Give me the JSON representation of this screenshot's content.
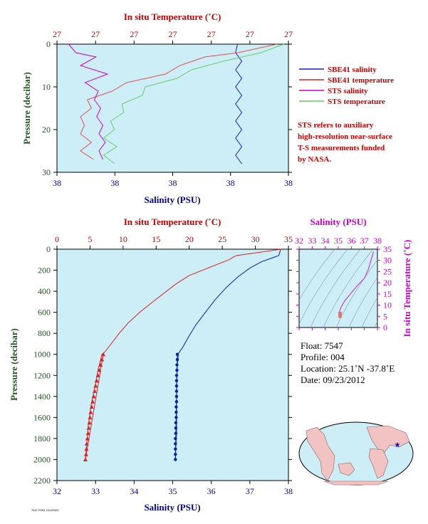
{
  "chart_data": [
    {
      "type": "line",
      "panel": "top",
      "title_top_axis": "In situ Temperature (˚C)",
      "top_ticks": [
        "27",
        "27",
        "27",
        "27",
        "27",
        "27",
        "27"
      ],
      "xlabel": "Salinity (PSU)",
      "bottom_ticks": [
        "38",
        "38",
        "38",
        "38",
        "38"
      ],
      "ylabel": "Pressure (decibar)",
      "ylim": [
        0,
        30
      ],
      "y_ticks": [
        "0",
        "10",
        "20",
        "30"
      ],
      "series": [
        {
          "name": "SBE41 salinity",
          "color": "#1a1acc",
          "points": [
            [
              0.78,
              0
            ],
            [
              0.79,
              2
            ],
            [
              0.78,
              4
            ],
            [
              0.79,
              6
            ],
            [
              0.78,
              8
            ],
            [
              0.79,
              10
            ],
            [
              0.78,
              12
            ],
            [
              0.79,
              14
            ],
            [
              0.78,
              16
            ],
            [
              0.79,
              18
            ],
            [
              0.78,
              20
            ],
            [
              0.79,
              22
            ],
            [
              0.78,
              24
            ],
            [
              0.79,
              26
            ],
            [
              0.78,
              28
            ]
          ]
        },
        {
          "name": "SBE41 temperature",
          "color": "#e65050",
          "points": [
            [
              0.95,
              0
            ],
            [
              0.8,
              2
            ],
            [
              0.62,
              3
            ],
            [
              0.55,
              5
            ],
            [
              0.45,
              7
            ],
            [
              0.32,
              9
            ],
            [
              0.22,
              11
            ],
            [
              0.15,
              13
            ],
            [
              0.13,
              15
            ],
            [
              0.12,
              17
            ],
            [
              0.1,
              19
            ],
            [
              0.12,
              21
            ],
            [
              0.13,
              23
            ],
            [
              0.12,
              25
            ],
            [
              0.14,
              27
            ]
          ]
        },
        {
          "name": "STS salinity",
          "color": "#cc00cc",
          "points": [
            [
              0.05,
              0
            ],
            [
              0.1,
              2
            ],
            [
              0.15,
              3
            ],
            [
              0.12,
              5
            ],
            [
              0.2,
              7
            ],
            [
              0.14,
              9
            ],
            [
              0.16,
              11
            ],
            [
              0.18,
              13
            ],
            [
              0.17,
              15
            ],
            [
              0.19,
              17
            ],
            [
              0.18,
              19
            ],
            [
              0.2,
              21
            ],
            [
              0.19,
              23
            ],
            [
              0.2,
              25
            ],
            [
              0.18,
              27
            ]
          ]
        },
        {
          "name": "STS temperature",
          "color": "#66cc66",
          "points": [
            [
              0.98,
              0
            ],
            [
              0.9,
              2
            ],
            [
              0.7,
              4
            ],
            [
              0.6,
              6
            ],
            [
              0.5,
              8
            ],
            [
              0.4,
              10
            ],
            [
              0.35,
              12
            ],
            [
              0.3,
              14
            ],
            [
              0.27,
              16
            ],
            [
              0.25,
              18
            ],
            [
              0.23,
              20
            ],
            [
              0.22,
              22
            ],
            [
              0.24,
              24
            ],
            [
              0.22,
              26
            ],
            [
              0.23,
              28
            ]
          ]
        }
      ],
      "note": "STS refers to auxiliary high-resolution near-surface T-S measurements funded by NASA."
    },
    {
      "type": "line",
      "panel": "main",
      "title_top_axis": "In situ Temperature (˚C)",
      "top_ticks": [
        "0",
        "5",
        "10",
        "15",
        "20",
        "25",
        "30",
        "35"
      ],
      "xlim_top": [
        0,
        35
      ],
      "xlabel": "Salinity (PSU)",
      "bottom_ticks": [
        "32",
        "33",
        "34",
        "35",
        "36",
        "37",
        "38"
      ],
      "xlim": [
        32,
        38
      ],
      "ylabel": "Pressure (decibar)",
      "ylim": [
        0,
        2200
      ],
      "y_ticks": [
        "0",
        "200",
        "400",
        "600",
        "800",
        "1000",
        "1200",
        "1400",
        "1600",
        "1800",
        "2000",
        "2200"
      ],
      "series": [
        {
          "name": "salinity",
          "color": "#0022aa",
          "x": [
            37.8,
            37.75,
            37.3,
            37.0,
            36.7,
            36.4,
            36.1,
            35.85,
            35.6,
            35.4,
            35.25,
            35.15,
            35.12,
            35.1,
            35.1,
            35.1,
            35.1,
            35.08,
            35.07
          ],
          "y": [
            0,
            60,
            120,
            180,
            260,
            360,
            480,
            600,
            720,
            840,
            940,
            990,
            1100,
            1300,
            1450,
            1600,
            1750,
            1900,
            2000
          ]
        },
        {
          "name": "temperature",
          "color": "#dd2222",
          "x": [
            33.9,
            27.2,
            26.8,
            26.0,
            20.0,
            18.0,
            14.5,
            12.5,
            10.8,
            9.4,
            8.2,
            7.2,
            6.8,
            6.2,
            5.6,
            5.1,
            4.7,
            4.5,
            4.3
          ],
          "y": [
            0,
            60,
            70,
            100,
            250,
            330,
            500,
            600,
            700,
            800,
            900,
            980,
            1000,
            1150,
            1350,
            1500,
            1700,
            1850,
            2000
          ]
        }
      ],
      "markers": {
        "salinity": {
          "x": [
            35.12,
            35.12,
            35.11,
            35.11,
            35.1,
            35.1,
            35.1,
            35.1,
            35.1,
            35.1,
            35.09,
            35.09,
            35.09,
            35.08,
            35.08,
            35.08,
            35.07,
            35.07,
            35.07,
            35.07,
            35.07
          ],
          "y": [
            1000,
            1050,
            1100,
            1150,
            1200,
            1250,
            1300,
            1350,
            1400,
            1450,
            1500,
            1550,
            1600,
            1650,
            1700,
            1750,
            1800,
            1850,
            1900,
            1950,
            2000
          ]
        },
        "temperature": {
          "x": [
            7.0,
            6.8,
            6.6,
            6.4,
            6.2,
            6.0,
            5.85,
            5.7,
            5.55,
            5.4,
            5.25,
            5.1,
            5.0,
            4.9,
            4.8,
            4.7,
            4.6,
            4.5,
            4.45,
            4.4,
            4.3
          ],
          "y": [
            1000,
            1050,
            1100,
            1150,
            1200,
            1250,
            1300,
            1350,
            1400,
            1450,
            1500,
            1550,
            1600,
            1650,
            1700,
            1750,
            1800,
            1850,
            1900,
            1950,
            2000
          ]
        }
      }
    },
    {
      "type": "line",
      "panel": "ts-diagram",
      "title_top_axis": "Salinity (PSU)",
      "top_ticks": [
        "32",
        "33",
        "34",
        "35",
        "36",
        "37",
        "38"
      ],
      "xlim": [
        32,
        38
      ],
      "ylabel": "In situ Temperature (˚C)",
      "y_ticks": [
        "0",
        "5",
        "10",
        "15",
        "20",
        "25",
        "30",
        "35"
      ],
      "ylim": [
        0,
        35
      ],
      "series": [
        {
          "name": "T-S",
          "color": "#cc22cc",
          "x": [
            35.07,
            35.1,
            35.2,
            35.5,
            36.0,
            36.5,
            37.0,
            37.3,
            37.7
          ],
          "y": [
            4.3,
            7.0,
            9.0,
            12.0,
            15.5,
            19.0,
            22.0,
            26.0,
            33.9
          ]
        }
      ]
    }
  ],
  "legend": [
    {
      "label": "SBE41 salinity",
      "color": "#1a1acc"
    },
    {
      "label": "SBE41 temperature",
      "color": "#dd2222"
    },
    {
      "label": "STS salinity",
      "color": "#cc00cc"
    },
    {
      "label": "STS temperature",
      "color": "#66cc66"
    }
  ],
  "note_lines": [
    "STS refers to auxiliary",
    "high-resolution near-surface",
    "T-S measurements funded",
    "by NASA."
  ],
  "info": {
    "float": "Float:  7547",
    "profile": "Profile:  004",
    "location": "Location:  25.1˚N  -37.8˚E",
    "date": "Date:  09/23/2012"
  },
  "footer_tag": "7547 P004 20120923",
  "colors": {
    "plot_bg": "#cdeef7",
    "temp_axis": "#cc0000",
    "sal_axis": "#0000aa",
    "ts_axis": "#cc00cc",
    "pressure_axis": "#225522"
  }
}
